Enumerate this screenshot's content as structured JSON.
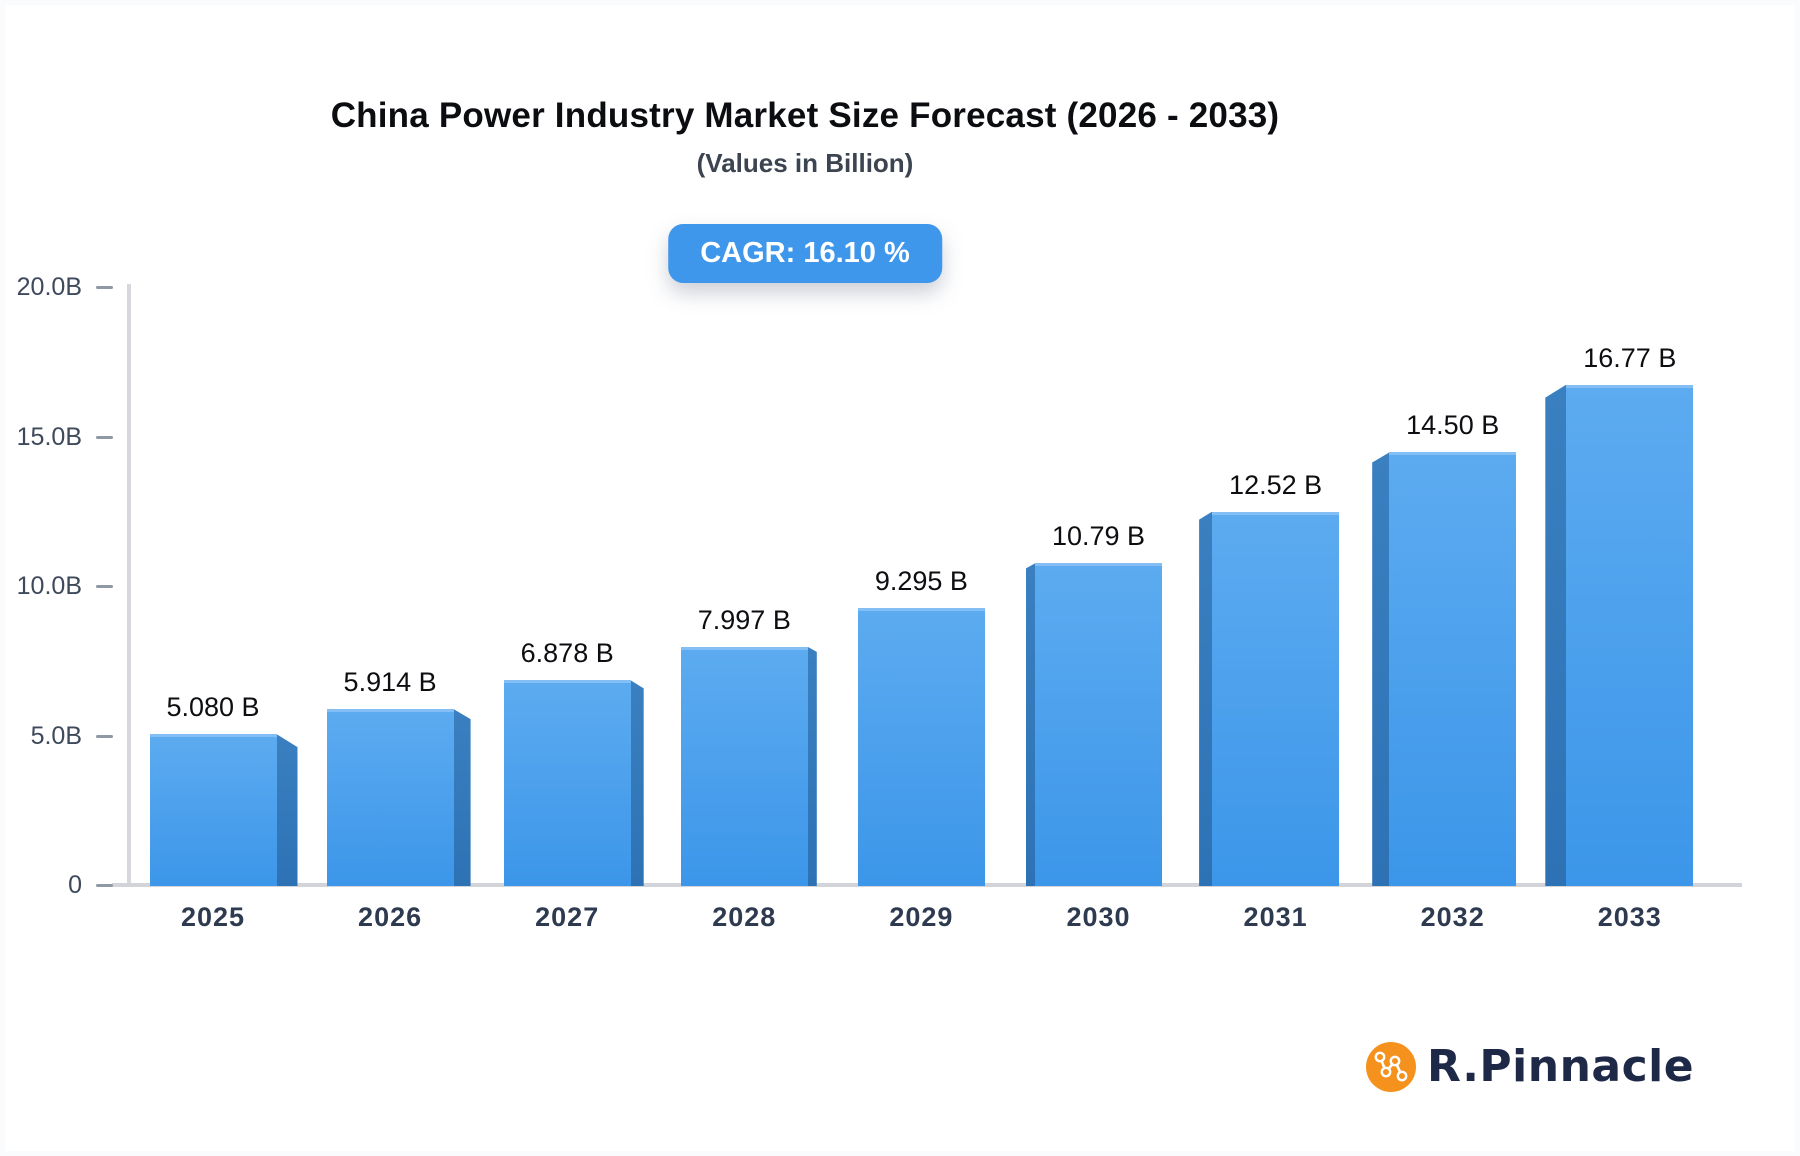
{
  "header": {
    "title": "China Power Industry Market Size Forecast (2026 - 2033)",
    "subtitle": "(Values in Billion)",
    "cagr_badge": "CAGR: 16.10 %"
  },
  "footer": {
    "brand": "R.Pinnacle"
  },
  "colors": {
    "badge_blue": "#3f97ec",
    "bar_face_top": "#5cabf0",
    "bar_face_bottom": "#3c96e9",
    "bar_face_highlight": "#83bff4",
    "bar_side_top": "#3a80c1",
    "bar_side_bottom": "#2d72b4",
    "axis_gray": "#d6d8dd",
    "tick_gray": "#9098a5",
    "label_dark": "#0c0e11",
    "year_label": "#2e3a4f",
    "logo_orange": "#f5921e",
    "logo_navy": "#1e2847"
  },
  "chart_data": {
    "type": "bar",
    "title": "China Power Industry Market Size Forecast (2026 - 2033)",
    "subtitle": "(Values in Billion)",
    "annotation": "CAGR: 16.10 %",
    "categories": [
      "2025",
      "2026",
      "2027",
      "2028",
      "2029",
      "2030",
      "2031",
      "2032",
      "2033"
    ],
    "values": [
      5.08,
      5.914,
      6.878,
      7.997,
      9.295,
      10.79,
      12.52,
      14.5,
      16.77
    ],
    "value_labels": [
      "5.080 B",
      "5.914 B",
      "6.878 B",
      "7.997 B",
      "9.295 B",
      "10.79 B",
      "12.52 B",
      "14.50 B",
      "16.77 B"
    ],
    "xlabel": "",
    "ylabel": "",
    "ylim": [
      0,
      20
    ],
    "y_ticks": [
      {
        "label": "20.0B",
        "value": 20
      },
      {
        "label": "15.0B",
        "value": 15
      },
      {
        "label": "10.0B",
        "value": 10
      },
      {
        "label": "5.0B",
        "value": 5
      },
      {
        "label": "0",
        "value": 0
      }
    ],
    "grid": false,
    "legend": "none",
    "style": "3d-extruded-bars, perspective toward center"
  }
}
